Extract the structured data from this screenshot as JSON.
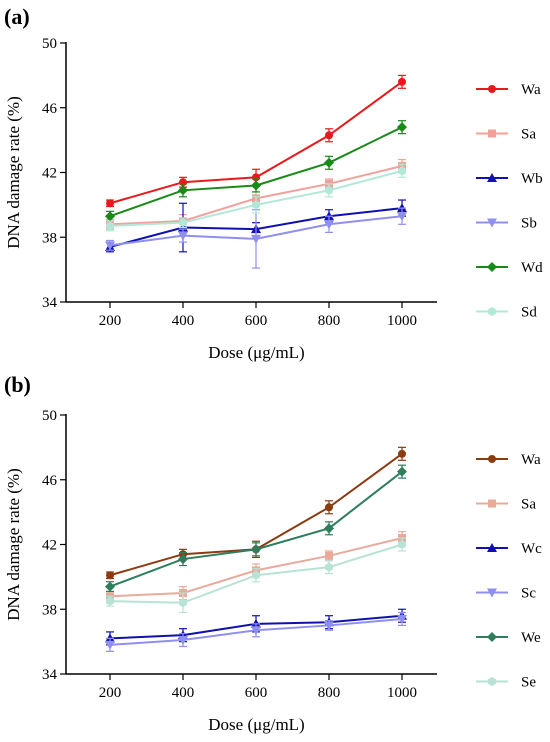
{
  "chart_data": [
    {
      "type": "line",
      "panel_label": "(a)",
      "xlabel": "Dose (μg/mL)",
      "ylabel": "DNA damage rate (%)",
      "x": [
        200,
        400,
        600,
        800,
        1000
      ],
      "x_tick_labels": [
        "200",
        "400",
        "600",
        "800",
        "1000"
      ],
      "ylim": [
        34,
        50
      ],
      "y_ticks": [
        34,
        38,
        42,
        46,
        50
      ],
      "y_tick_labels": [
        "34",
        "38",
        "42",
        "46",
        "50"
      ],
      "grid": false,
      "legend_position": "right",
      "series": [
        {
          "name": "Wa",
          "color": "#e8191c",
          "marker": "circle",
          "values": [
            40.1,
            41.4,
            41.7,
            44.3,
            47.6
          ],
          "errors": [
            0.2,
            0.3,
            0.5,
            0.4,
            0.4
          ]
        },
        {
          "name": "Sa",
          "color": "#f3a09a",
          "marker": "square",
          "values": [
            38.8,
            39.0,
            40.4,
            41.3,
            42.4
          ],
          "errors": [
            0.3,
            0.4,
            0.4,
            0.3,
            0.4
          ]
        },
        {
          "name": "Wb",
          "color": "#1010b0",
          "marker": "triangle-up",
          "values": [
            37.4,
            38.6,
            38.5,
            39.3,
            39.8
          ],
          "errors": [
            0.3,
            1.5,
            0.4,
            0.4,
            0.5
          ]
        },
        {
          "name": "Sb",
          "color": "#8f8ff0",
          "marker": "triangle-down",
          "values": [
            37.5,
            38.1,
            37.9,
            38.8,
            39.3
          ],
          "errors": [
            0.3,
            0.4,
            1.8,
            0.5,
            0.5
          ]
        },
        {
          "name": "Wd",
          "color": "#178a17",
          "marker": "diamond",
          "values": [
            39.3,
            40.9,
            41.2,
            42.6,
            44.8
          ],
          "errors": [
            0.3,
            0.4,
            0.4,
            0.4,
            0.4
          ]
        },
        {
          "name": "Sd",
          "color": "#b2e8d8",
          "marker": "hexagon",
          "values": [
            38.7,
            38.9,
            40.0,
            40.9,
            42.1
          ],
          "errors": [
            0.3,
            0.3,
            0.5,
            0.4,
            0.4
          ]
        }
      ]
    },
    {
      "type": "line",
      "panel_label": "(b)",
      "xlabel": "Dose (μg/mL)",
      "ylabel": "DNA damage rate (%)",
      "x": [
        200,
        400,
        600,
        800,
        1000
      ],
      "x_tick_labels": [
        "200",
        "400",
        "600",
        "800",
        "1000"
      ],
      "ylim": [
        34,
        50
      ],
      "y_ticks": [
        34,
        38,
        42,
        46,
        50
      ],
      "y_tick_labels": [
        "34",
        "38",
        "42",
        "46",
        "50"
      ],
      "grid": false,
      "legend_position": "right",
      "series": [
        {
          "name": "Wa",
          "color": "#8b3b12",
          "marker": "circle",
          "values": [
            40.1,
            41.4,
            41.7,
            44.3,
            47.6
          ],
          "errors": [
            0.2,
            0.3,
            0.5,
            0.4,
            0.4
          ]
        },
        {
          "name": "Sa",
          "color": "#e8aa9a",
          "marker": "square",
          "values": [
            38.8,
            39.0,
            40.4,
            41.3,
            42.4
          ],
          "errors": [
            0.3,
            0.4,
            0.4,
            0.3,
            0.4
          ]
        },
        {
          "name": "Wc",
          "color": "#1010b0",
          "marker": "triangle-up",
          "values": [
            36.2,
            36.4,
            37.1,
            37.2,
            37.6
          ],
          "errors": [
            0.4,
            0.4,
            0.5,
            0.4,
            0.4
          ]
        },
        {
          "name": "Sc",
          "color": "#8f8ff0",
          "marker": "triangle-down",
          "values": [
            35.8,
            36.1,
            36.7,
            37.0,
            37.4
          ],
          "errors": [
            0.4,
            0.4,
            0.4,
            0.3,
            0.4
          ]
        },
        {
          "name": "We",
          "color": "#2e7d5b",
          "marker": "diamond",
          "values": [
            39.4,
            41.1,
            41.7,
            43.0,
            46.5
          ],
          "errors": [
            0.3,
            0.4,
            0.4,
            0.4,
            0.4
          ]
        },
        {
          "name": "Se",
          "color": "#b8e2d6",
          "marker": "hexagon",
          "values": [
            38.5,
            38.4,
            40.1,
            40.6,
            42.0
          ],
          "errors": [
            0.3,
            0.6,
            0.4,
            0.4,
            0.4
          ]
        }
      ]
    }
  ]
}
